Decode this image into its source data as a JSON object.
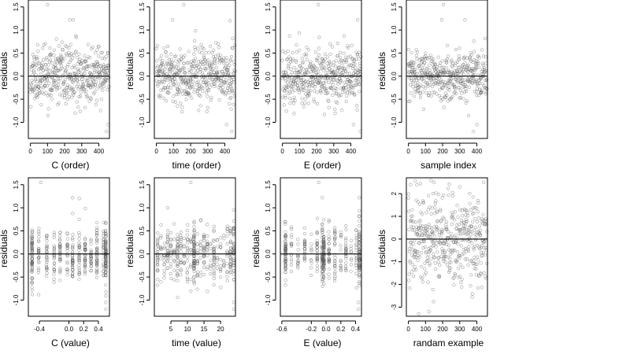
{
  "chart_data": [
    {
      "id": "C_order",
      "type": "scatter",
      "xlabel": "C (order)",
      "ylabel": "residuals",
      "xlim": [
        -12,
        462
      ],
      "ylim": [
        -1.35,
        1.65
      ],
      "x_ticks": [
        0,
        100,
        200,
        300,
        400
      ],
      "x_tick_labels": [
        "0",
        "100",
        "200",
        "300",
        "400"
      ],
      "y_ticks": [
        -1.0,
        -0.5,
        0.0,
        0.5,
        1.0,
        1.5
      ],
      "y_tick_labels": [
        "-1.0",
        "-0.5",
        "0.0",
        "0.5",
        "1.0",
        "1.5"
      ],
      "reference_line_y": 0,
      "x_mode": "index",
      "n_points": 460,
      "y_sd": 0.3,
      "seed": 11,
      "notable_points": [
        [
          100,
          1.55
        ],
        [
          230,
          1.22
        ],
        [
          250,
          1.22
        ],
        [
          445,
          -1.2
        ],
        [
          455,
          -1.05
        ]
      ]
    },
    {
      "id": "time_order",
      "type": "scatter",
      "xlabel": "time (order)",
      "ylabel": "residuals",
      "xlim": [
        -12,
        462
      ],
      "ylim": [
        -1.35,
        1.65
      ],
      "x_ticks": [
        0,
        100,
        200,
        300,
        400
      ],
      "x_tick_labels": [
        "0",
        "100",
        "200",
        "300",
        "400"
      ],
      "y_ticks": [
        -1.0,
        -0.5,
        0.0,
        0.5,
        1.0,
        1.5
      ],
      "y_tick_labels": [
        "-1.0",
        "-0.5",
        "0.0",
        "0.5",
        "1.0",
        "1.5"
      ],
      "reference_line_y": 0,
      "x_mode": "index",
      "n_points": 460,
      "y_sd": 0.3,
      "seed": 23,
      "notable_points": [
        [
          160,
          1.55
        ],
        [
          95,
          1.22
        ],
        [
          430,
          1.2
        ],
        [
          440,
          -1.2
        ],
        [
          410,
          -1.05
        ]
      ]
    },
    {
      "id": "E_order",
      "type": "scatter",
      "xlabel": "E (order)",
      "ylabel": "residuals",
      "xlim": [
        -12,
        462
      ],
      "ylim": [
        -1.35,
        1.65
      ],
      "x_ticks": [
        0,
        100,
        200,
        300,
        400
      ],
      "x_tick_labels": [
        "0",
        "100",
        "200",
        "300",
        "400"
      ],
      "y_ticks": [
        -1.0,
        -0.5,
        0.0,
        0.5,
        1.0,
        1.5
      ],
      "y_tick_labels": [
        "-1.0",
        "-0.5",
        "0.0",
        "0.5",
        "1.0",
        "1.5"
      ],
      "reference_line_y": 0,
      "x_mode": "index",
      "n_points": 460,
      "y_sd": 0.3,
      "seed": 37,
      "notable_points": [
        [
          210,
          1.55
        ],
        [
          440,
          1.22
        ],
        [
          455,
          -1.2
        ],
        [
          415,
          -1.05
        ]
      ]
    },
    {
      "id": "sample_index",
      "type": "scatter",
      "xlabel": "sample index",
      "ylabel": "residuals",
      "xlim": [
        -12,
        462
      ],
      "ylim": [
        -1.35,
        1.65
      ],
      "x_ticks": [
        0,
        100,
        200,
        300,
        400
      ],
      "x_tick_labels": [
        "0",
        "100",
        "200",
        "300",
        "400"
      ],
      "y_ticks": [
        -1.0,
        -0.5,
        0.0,
        0.5,
        1.0,
        1.5
      ],
      "y_tick_labels": [
        "-1.0",
        "-0.5",
        "0.0",
        "0.5",
        "1.0",
        "1.5"
      ],
      "reference_line_y": 0,
      "x_mode": "index",
      "n_points": 460,
      "y_sd": 0.25,
      "seed": 53,
      "notable_points": [
        [
          205,
          1.55
        ],
        [
          195,
          1.22
        ],
        [
          330,
          1.22
        ],
        [
          380,
          -1.2
        ],
        [
          400,
          -1.05
        ]
      ]
    },
    {
      "id": "C_value",
      "type": "scatter",
      "xlabel": "C (value)",
      "ylabel": "residuals",
      "xlim": [
        -0.55,
        0.55
      ],
      "ylim": [
        -1.35,
        1.65
      ],
      "x_ticks": [
        -0.4,
        0.0,
        0.2,
        0.4
      ],
      "x_tick_labels": [
        "-0.4",
        "0.0",
        "0.2",
        "0.4"
      ],
      "y_ticks": [
        -1.0,
        -0.5,
        0.0,
        0.5,
        1.0,
        1.5
      ],
      "y_tick_labels": [
        "-1.0",
        "-0.5",
        "0.0",
        "0.5",
        "1.0",
        "1.5"
      ],
      "reference_line_y": 0,
      "x_mode": "levels",
      "n_points": 460,
      "y_sd": 0.3,
      "seed": 71,
      "x_levels": [
        -0.5,
        -0.41,
        -0.3,
        -0.2,
        -0.12,
        -0.02,
        0.05,
        0.14,
        0.22,
        0.3,
        0.38,
        0.47,
        0.5
      ],
      "x_level_weights": [
        6,
        2,
        2,
        2,
        2,
        2,
        3,
        2,
        3,
        2,
        3,
        2,
        6
      ],
      "notable_points": [
        [
          -0.38,
          1.55
        ],
        [
          0.05,
          1.22
        ],
        [
          0.14,
          1.2
        ],
        [
          0.5,
          -1.2
        ],
        [
          0.5,
          -1.05
        ]
      ]
    },
    {
      "id": "time_value",
      "type": "scatter",
      "xlabel": "time (value)",
      "ylabel": "residuals",
      "xlim": [
        0,
        24.5
      ],
      "ylim": [
        -1.35,
        1.65
      ],
      "x_ticks": [
        5,
        10,
        15,
        20
      ],
      "x_tick_labels": [
        "5",
        "10",
        "15",
        "20"
      ],
      "y_ticks": [
        -1.0,
        -0.5,
        0.0,
        0.5,
        1.0,
        1.5
      ],
      "y_tick_labels": [
        "-1.0",
        "-0.5",
        "0.0",
        "0.5",
        "1.0",
        "1.5"
      ],
      "reference_line_y": 0,
      "x_mode": "levels",
      "n_points": 460,
      "y_sd": 0.3,
      "seed": 89,
      "x_levels": [
        1,
        2,
        3,
        4,
        5,
        6,
        7,
        8,
        9,
        10,
        11,
        12,
        13,
        14,
        15,
        16,
        17,
        18,
        19,
        20,
        21,
        22,
        23,
        24
      ],
      "x_level_weights": [
        2,
        1,
        1,
        2,
        1,
        1,
        2,
        1,
        1,
        1,
        1,
        6,
        1,
        1,
        2,
        1,
        1,
        2,
        1,
        1,
        1,
        1,
        2,
        3
      ],
      "notable_points": [
        [
          11,
          1.55
        ],
        [
          4,
          1.0
        ],
        [
          24,
          -1.2
        ],
        [
          24,
          -1.05
        ]
      ]
    },
    {
      "id": "E_value",
      "type": "scatter",
      "xlabel": "E (value)",
      "ylabel": "residuals",
      "xlim": [
        -0.62,
        0.48
      ],
      "ylim": [
        -1.35,
        1.65
      ],
      "x_ticks": [
        -0.6,
        -0.2,
        0.0,
        0.2,
        0.4
      ],
      "x_tick_labels": [
        "-0.6",
        "-0.2",
        "0.0",
        "0.2",
        "0.4"
      ],
      "y_ticks": [
        -1.0,
        -0.5,
        0.0,
        0.5,
        1.0,
        1.5
      ],
      "y_tick_labels": [
        "-1.0",
        "-0.5",
        "0.0",
        "0.5",
        "1.0",
        "1.5"
      ],
      "reference_line_y": 0,
      "x_mode": "levels",
      "n_points": 460,
      "y_sd": 0.3,
      "seed": 97,
      "x_levels": [
        -0.55,
        -0.47,
        -0.38,
        -0.29,
        -0.2,
        -0.12,
        -0.05,
        -0.03,
        0.04,
        0.12,
        0.2,
        0.27,
        0.34,
        0.41,
        0.45
      ],
      "x_level_weights": [
        5,
        1,
        1,
        2,
        1,
        2,
        3,
        6,
        2,
        2,
        2,
        2,
        1,
        2,
        6
      ],
      "notable_points": [
        [
          -0.1,
          1.55
        ],
        [
          -0.05,
          1.22
        ],
        [
          0.45,
          1.22
        ],
        [
          0.44,
          -1.2
        ],
        [
          0.44,
          -1.05
        ]
      ]
    },
    {
      "id": "random_example",
      "type": "scatter",
      "xlabel": "randam example",
      "ylabel": "residuals",
      "xlim": [
        -12,
        462
      ],
      "ylim": [
        -3.4,
        2.7
      ],
      "x_ticks": [
        0,
        100,
        200,
        300,
        400
      ],
      "x_tick_labels": [
        "0",
        "100",
        "200",
        "300",
        "400"
      ],
      "y_ticks": [
        -3,
        -2,
        -1,
        0,
        1,
        2
      ],
      "y_tick_labels": [
        "-3",
        "-2",
        "-1",
        "0",
        "1",
        "2"
      ],
      "reference_line_y": 0,
      "x_mode": "index",
      "n_points": 460,
      "y_sd": 1.0,
      "seed": 131,
      "notable_points": [
        [
          60,
          -3.3
        ],
        [
          120,
          -3.2
        ],
        [
          150,
          2.5
        ],
        [
          300,
          2.3
        ]
      ]
    }
  ]
}
